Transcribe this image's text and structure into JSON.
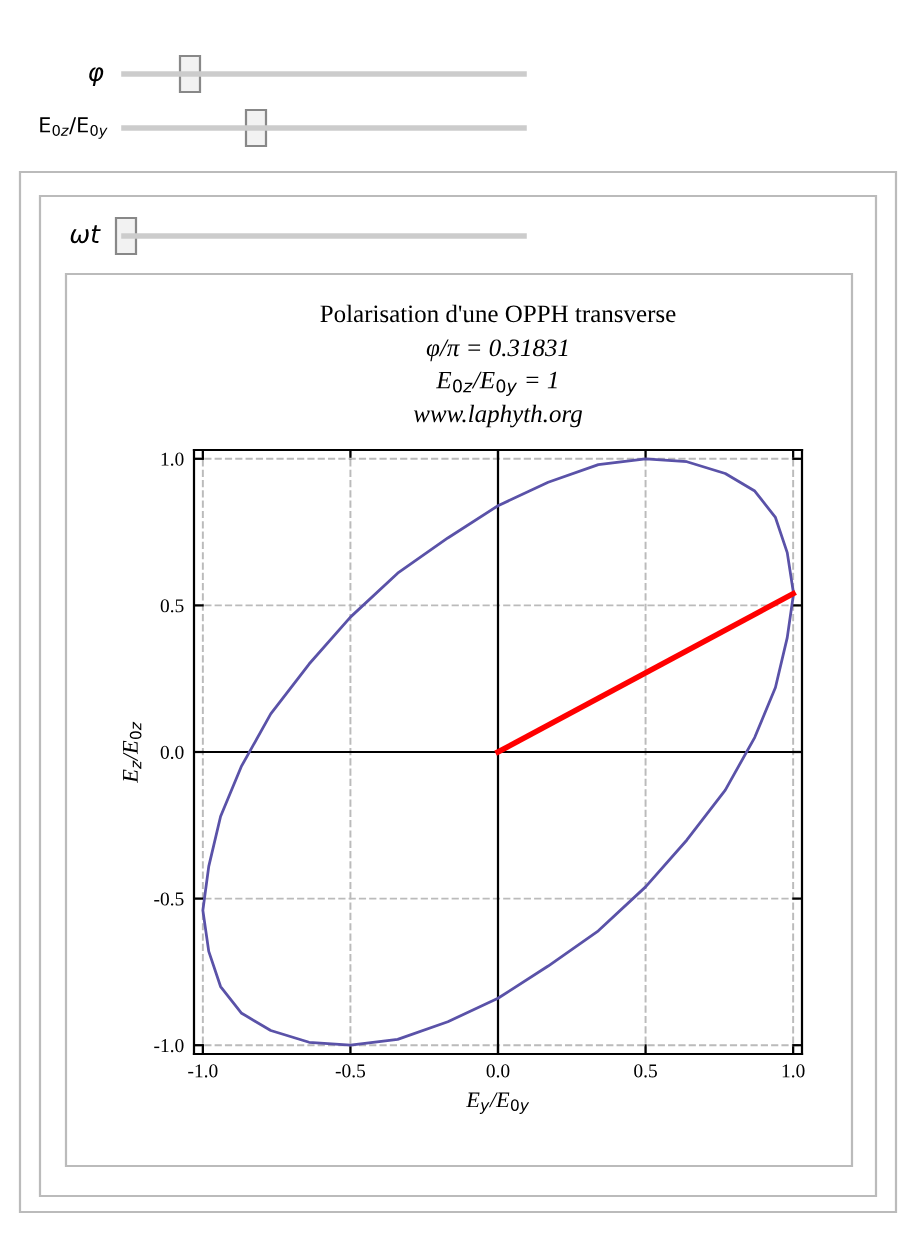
{
  "chart_data": {
    "type": "line",
    "title": "Polarisation d'une OPPH transverse",
    "subtitle": "φ/π = 0.31831\nE$_{0z}$/E$_{0y}$ = 1",
    "xlabel": "E$_{y}$/E$_{0y}$",
    "ylabel": "E$_{z}$/E$_{0z}$",
    "annotations": [
      "www.laphyth.org",
      "φ",
      "E$_{0z}$/E$_{0y}$",
      "ωt"
    ],
    "series": [
      {
        "color": "#5a52a8",
        "x": [
          1.0,
          0.98,
          0.94,
          0.87,
          0.77,
          0.64,
          0.5,
          0.34,
          0.17,
          0.0,
          -0.17,
          -0.34,
          -0.5,
          -0.64,
          -0.77,
          -0.87,
          -0.94,
          -0.98,
          -1.0,
          -0.98,
          -0.94,
          -0.87,
          -0.77,
          -0.64,
          -0.5,
          -0.34,
          -0.17,
          0.0,
          0.17,
          0.34,
          0.5,
          0.64,
          0.77,
          0.87,
          0.94,
          0.98,
          1.0
        ],
        "values": [
          0.55,
          0.68,
          0.8,
          0.89,
          0.95,
          0.99,
          1.0,
          0.98,
          0.92,
          0.84,
          0.73,
          0.61,
          0.46,
          0.3,
          0.13,
          -0.05,
          -0.22,
          -0.39,
          -0.54,
          -0.68,
          -0.8,
          -0.89,
          -0.95,
          -0.99,
          -1.0,
          -0.98,
          -0.92,
          -0.84,
          -0.73,
          -0.61,
          -0.46,
          -0.3,
          -0.13,
          0.05,
          0.22,
          0.39,
          0.53
        ]
      },
      {
        "color": "#ff0000",
        "x": [
          0,
          1.0
        ],
        "values": [
          0,
          0.54
        ]
      }
    ],
    "xlim": [
      -1.03,
      1.03
    ],
    "ylim": [
      -1.03,
      1.03
    ],
    "xticks": [
      {
        "value": -1,
        "label": "-1.0"
      },
      {
        "value": -0.5,
        "label": "-0.5"
      },
      {
        "value": 0,
        "label": "0.0"
      },
      {
        "value": 0.5,
        "label": "0.5"
      },
      {
        "value": 1,
        "label": "1.0"
      }
    ],
    "yticks": [
      {
        "value": -1,
        "label": "-1.0"
      },
      {
        "value": -0.5,
        "label": "-0.5"
      },
      {
        "value": 0,
        "label": "0.0"
      },
      {
        "value": 0.5,
        "label": "0.5"
      },
      {
        "value": 1,
        "label": "1.0"
      }
    ],
    "grid": true,
    "line_style": "solid",
    "marker": "none",
    "legend": false
  }
}
